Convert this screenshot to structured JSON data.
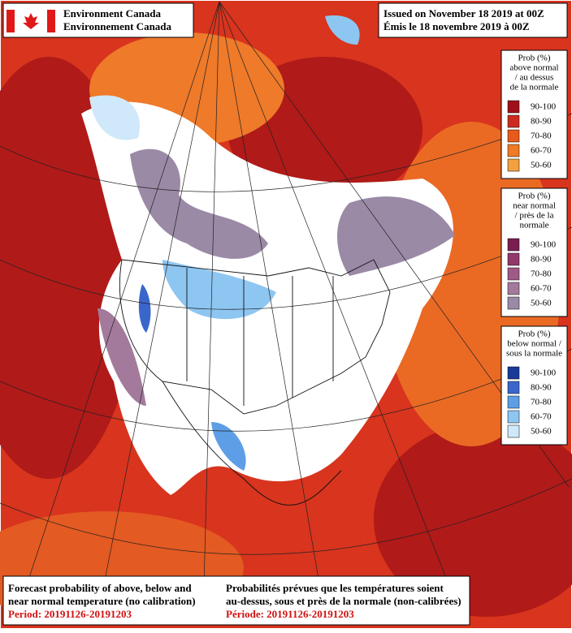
{
  "header": {
    "agency_en": "Environment Canada",
    "agency_fr": "Environnement Canada",
    "issued_en": "Issued on November 18 2019 at 00Z",
    "issued_fr": "Émis le 18 novembre 2019 à 00Z"
  },
  "legends": [
    {
      "title": [
        "Prob (%)",
        "above normal",
        "/ au dessus",
        "de la normale"
      ],
      "items": [
        {
          "label": "90-100",
          "color": "#a0101a"
        },
        {
          "label": "80-90",
          "color": "#cc2a1e"
        },
        {
          "label": "70-80",
          "color": "#e85a1c"
        },
        {
          "label": "60-70",
          "color": "#f07a26"
        },
        {
          "label": "50-60",
          "color": "#f3a040"
        }
      ]
    },
    {
      "title": [
        "Prob (%)",
        "near normal",
        "/ près de la",
        "normale"
      ],
      "items": [
        {
          "label": "90-100",
          "color": "#7a1e50"
        },
        {
          "label": "80-90",
          "color": "#93386b"
        },
        {
          "label": "70-80",
          "color": "#a05a86"
        },
        {
          "label": "60-70",
          "color": "#a37a9c"
        },
        {
          "label": "50-60",
          "color": "#9a8aa6"
        }
      ]
    },
    {
      "title": [
        "Prob (%)",
        "below normal /",
        "sous la normale"
      ],
      "items": [
        {
          "label": "90-100",
          "color": "#1a3a9a"
        },
        {
          "label": "80-90",
          "color": "#3a66cc"
        },
        {
          "label": "70-80",
          "color": "#5e9ee6"
        },
        {
          "label": "60-70",
          "color": "#8ec6f2"
        },
        {
          "label": "50-60",
          "color": "#cfe8fa"
        }
      ]
    }
  ],
  "footer": {
    "en_lines": [
      "Forecast probability of above, below and",
      "near normal temperature (no calibration)"
    ],
    "en_period": "Period: 20191126-20191203",
    "fr_lines": [
      "Probabilités prévues que les températures soient",
      "au-dessus, sous et près de la normale (non-calibrées)"
    ],
    "fr_period": "Période: 20191126-20191203"
  }
}
